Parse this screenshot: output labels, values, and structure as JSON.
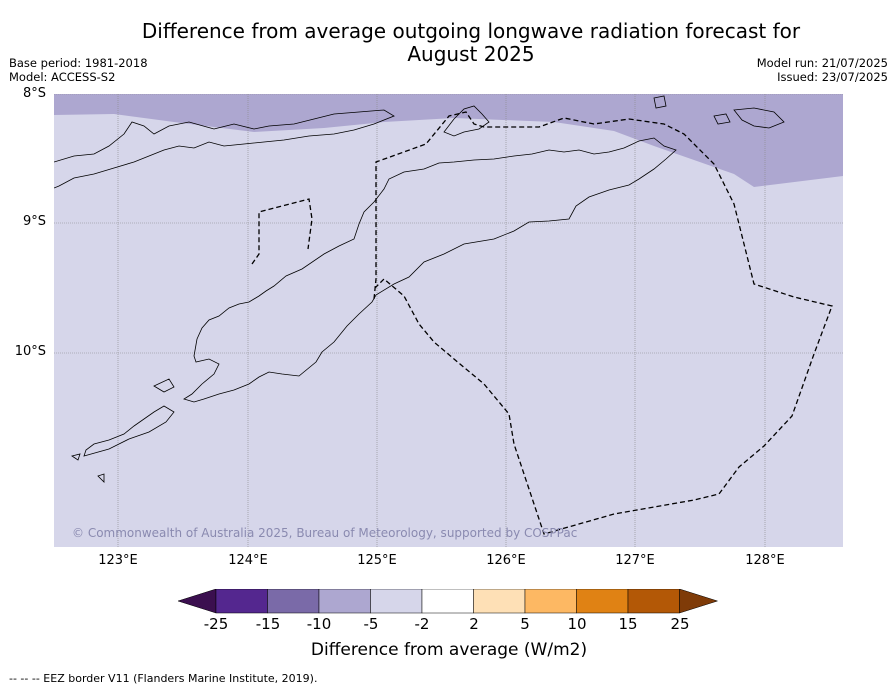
{
  "title": "Difference from average outgoing longwave radiation forecast for August 2025",
  "title_line1": "Difference from average outgoing longwave radiation forecast for",
  "title_line2": "August 2025",
  "base_period": "Base period: 1981-2018",
  "model": "Model: ACCESS-S2",
  "model_run": "Model run: 21/07/2025",
  "issued": "Issued: 23/07/2025",
  "lat_labels": [
    "8°S",
    "9°S",
    "10°S"
  ],
  "lon_labels": [
    "123°E",
    "124°E",
    "125°E",
    "126°E",
    "127°E",
    "128°E"
  ],
  "copyright": "© Commonwealth of Australia 2025, Bureau of Meteorology, supported by COSPPac",
  "colorbar": {
    "title": "Difference from average (W/m2)",
    "labels": [
      "-25",
      "-15",
      "-10",
      "-5",
      "-2",
      "2",
      "5",
      "10",
      "15",
      "25"
    ],
    "colors": [
      "#3b0f4f",
      "#54278f",
      "#7a6aa8",
      "#ada7d0",
      "#d6d6ea",
      "#ffffff",
      "#fee0b6",
      "#fdb863",
      "#e08214",
      "#b35806",
      "#7f3b08"
    ]
  },
  "map": {
    "background_category": "-5 to -2",
    "background_color": "#d6d6ea",
    "north_band_category": "-10 to -5",
    "north_band_color": "#ada7d0",
    "lon_range": [
      122.5,
      128.6
    ],
    "lat_range": [
      -8.0,
      -11.5
    ]
  },
  "footnote": "--  --  -- EEZ border V11 (Flanders Marine Institute, 2019)."
}
